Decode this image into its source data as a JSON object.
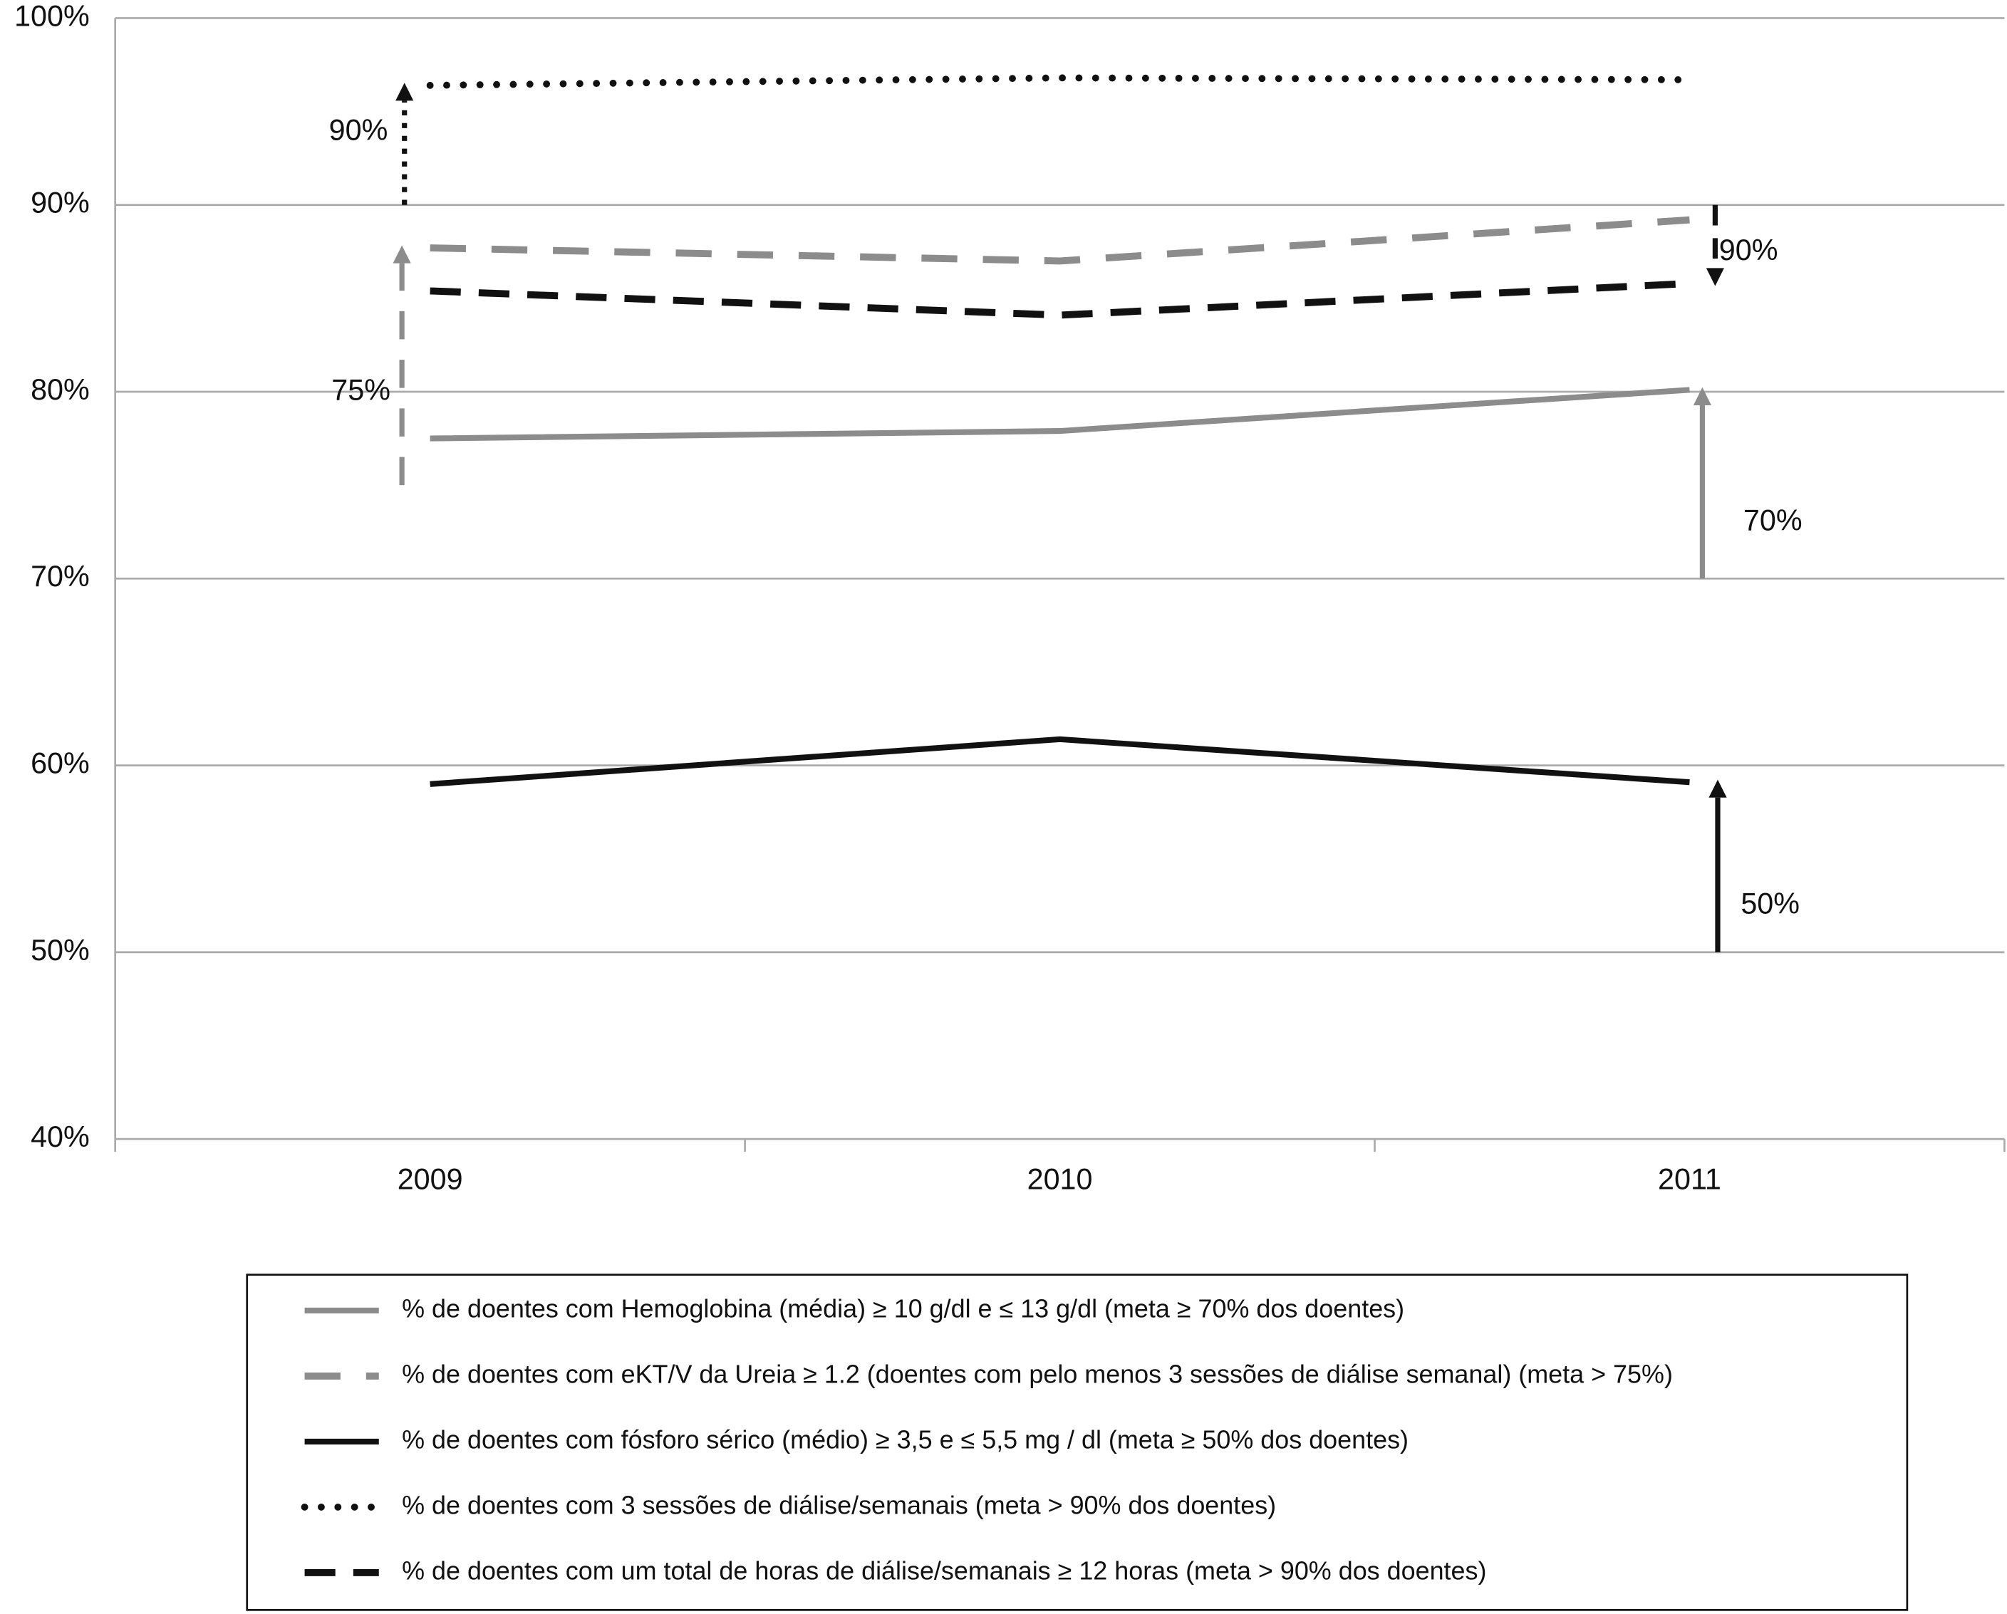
{
  "chart_data": {
    "type": "line",
    "categories": [
      "2009",
      "2010",
      "2011"
    ],
    "series": [
      {
        "name": "% de doentes com Hemoglobina (média) ≥ 10 g/dl e ≤ 13 g/dl  (meta ≥ 70% dos doentes)",
        "color": "#8c8c8c",
        "style": "solid",
        "values": [
          77.5,
          77.9,
          80.1
        ]
      },
      {
        "name": "% de doentes com eKT/V da Ureia ≥ 1.2 (doentes com pelo menos 3 sessões de diálise semanal)   (meta > 75%)",
        "color": "#8c8c8c",
        "style": "dashed",
        "values": [
          87.7,
          87.0,
          89.2
        ]
      },
      {
        "name": "% de doentes com fósforo sérico (médio) ≥ 3,5 e ≤ 5,5 mg / dl  (meta ≥ 50% dos doentes)",
        "color": "#111111",
        "style": "solid",
        "values": [
          59.0,
          61.4,
          59.1
        ]
      },
      {
        "name": "% de doentes com 3 sessões de diálise/semanais   (meta > 90% dos doentes)",
        "color": "#111111",
        "style": "dotted",
        "values": [
          96.4,
          96.8,
          96.7
        ]
      },
      {
        "name": "% de doentes com um total de horas de diálise/semanais ≥ 12 horas  (meta > 90% dos doentes)",
        "color": "#111111",
        "style": "dashed",
        "values": [
          85.4,
          84.1,
          85.8
        ]
      }
    ],
    "annotations": [
      {
        "text": "90%",
        "value": 90
      },
      {
        "text": "75%",
        "value": 75
      },
      {
        "text": "90%",
        "value": 90
      },
      {
        "text": "70%",
        "value": 70
      },
      {
        "text": "50%",
        "value": 50
      }
    ],
    "ylim": [
      40,
      100
    ],
    "yticks": [
      {
        "value": 40,
        "label": "40%"
      },
      {
        "value": 50,
        "label": "50%"
      },
      {
        "value": 60,
        "label": "60%"
      },
      {
        "value": 70,
        "label": "70%"
      },
      {
        "value": 80,
        "label": "80%"
      },
      {
        "value": 90,
        "label": "90%"
      },
      {
        "value": 100,
        "label": "100%"
      }
    ],
    "grid": true
  }
}
